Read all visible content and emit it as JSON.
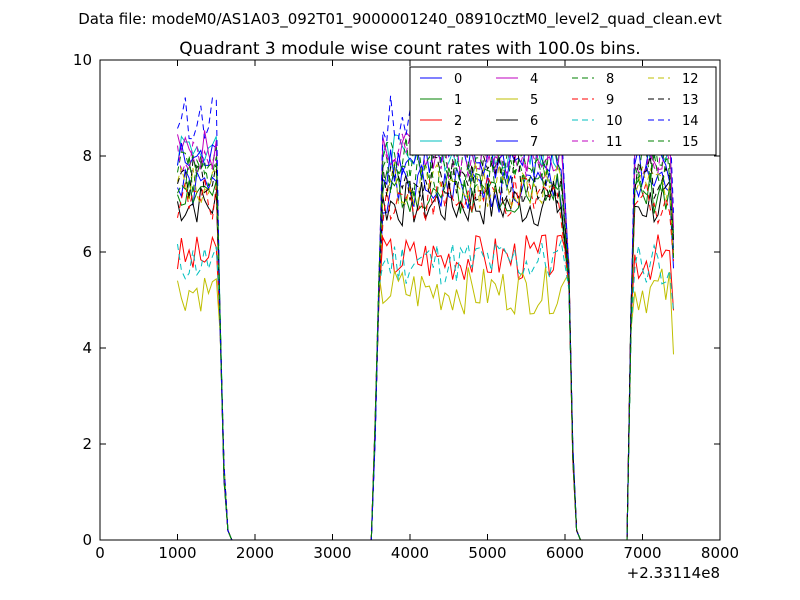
{
  "suptitle": "Data file: modeM0/AS1A03_092T01_9000001240_08910cztM0_level2_quad_clean.evt",
  "chart_data": {
    "type": "line",
    "title": "Quadrant 3 module wise count rates with 100.0s bins.",
    "xlabel": "",
    "ylabel": "",
    "xlim": [
      0,
      8000
    ],
    "ylim": [
      0,
      10
    ],
    "x_ticks": [
      0,
      1000,
      2000,
      3000,
      4000,
      5000,
      6000,
      7000,
      8000
    ],
    "y_ticks": [
      0,
      2,
      4,
      6,
      8,
      10
    ],
    "x_offset_label": "+2.33114e8",
    "grid": false,
    "legend": {
      "placement": "top-right",
      "columns": 4
    },
    "gaps": [
      [
        1700,
        3500
      ],
      [
        6200,
        6800
      ]
    ],
    "series": [
      {
        "name": "0",
        "color": "#0000ff",
        "dash": "solid",
        "level": 7.3,
        "seed": 1
      },
      {
        "name": "1",
        "color": "#008000",
        "dash": "solid",
        "level": 7.3,
        "seed": 2
      },
      {
        "name": "2",
        "color": "#ff0000",
        "dash": "solid",
        "level": 5.9,
        "seed": 3
      },
      {
        "name": "3",
        "color": "#00bfbf",
        "dash": "solid",
        "level": 8.2,
        "seed": 4
      },
      {
        "name": "4",
        "color": "#bf00bf",
        "dash": "solid",
        "level": 8.1,
        "seed": 5
      },
      {
        "name": "5",
        "color": "#bfbf00",
        "dash": "solid",
        "level": 5.2,
        "seed": 6
      },
      {
        "name": "6",
        "color": "#000000",
        "dash": "solid",
        "level": 7.0,
        "seed": 7
      },
      {
        "name": "7",
        "color": "#0000ff",
        "dash": "solid",
        "level": 7.9,
        "seed": 8
      },
      {
        "name": "8",
        "color": "#008000",
        "dash": "dashed",
        "level": 7.9,
        "seed": 9
      },
      {
        "name": "9",
        "color": "#ff0000",
        "dash": "dashed",
        "level": 7.1,
        "seed": 10
      },
      {
        "name": "10",
        "color": "#00bfbf",
        "dash": "dashed",
        "level": 5.8,
        "seed": 11
      },
      {
        "name": "11",
        "color": "#bf00bf",
        "dash": "dashed",
        "level": 8.0,
        "seed": 12
      },
      {
        "name": "12",
        "color": "#bfbf00",
        "dash": "dashed",
        "level": 7.4,
        "seed": 13
      },
      {
        "name": "13",
        "color": "#000000",
        "dash": "dashed",
        "level": 7.5,
        "seed": 14
      },
      {
        "name": "14",
        "color": "#0000ff",
        "dash": "dashed",
        "level": 8.8,
        "seed": 15
      },
      {
        "name": "15",
        "color": "#008000",
        "dash": "dashed",
        "level": 7.6,
        "seed": 16
      }
    ]
  }
}
